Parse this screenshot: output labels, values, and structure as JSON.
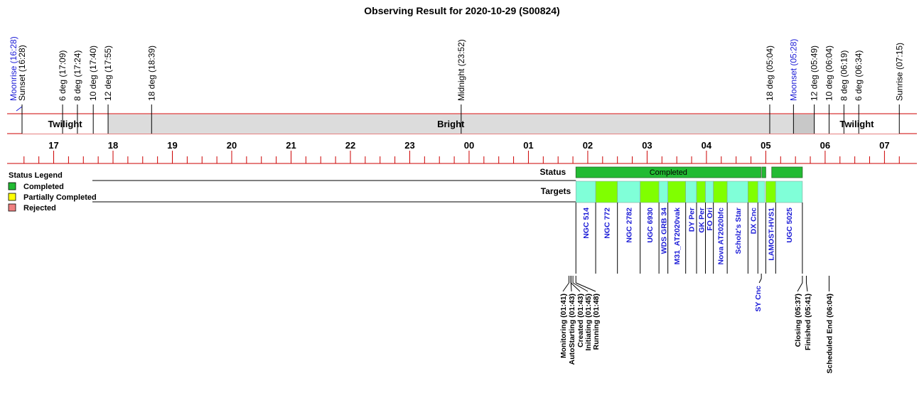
{
  "chart_data": {
    "type": "timeline",
    "title": "Observing Result for 2020-10-29 (S00824)",
    "time_axis": {
      "start": "16:28",
      "end": "07:15",
      "hour_ticks": [
        "17",
        "18",
        "19",
        "20",
        "21",
        "22",
        "23",
        "00",
        "01",
        "02",
        "03",
        "04",
        "05",
        "06",
        "07"
      ]
    },
    "events": [
      {
        "label": "Moonrise (16:28)",
        "time": "16:28",
        "kind": "moon"
      },
      {
        "label": "Sunset (16:28)",
        "time": "16:28",
        "kind": "sun"
      },
      {
        "label": "6 deg (17:09)",
        "time": "17:09",
        "kind": "sun"
      },
      {
        "label": "8 deg (17:24)",
        "time": "17:24",
        "kind": "sun"
      },
      {
        "label": "10 deg (17:40)",
        "time": "17:40",
        "kind": "sun"
      },
      {
        "label": "12 deg (17:55)",
        "time": "17:55",
        "kind": "sun"
      },
      {
        "label": "18 deg (18:39)",
        "time": "18:39",
        "kind": "sun"
      },
      {
        "label": "Midnight (23:52)",
        "time": "23:52",
        "kind": "sun"
      },
      {
        "label": "18 deg (05:04)",
        "time": "05:04",
        "kind": "sun"
      },
      {
        "label": "Moonset (05:28)",
        "time": "05:28",
        "kind": "moon"
      },
      {
        "label": "12 deg (05:49)",
        "time": "05:49",
        "kind": "sun"
      },
      {
        "label": "10 deg (06:04)",
        "time": "06:04",
        "kind": "sun"
      },
      {
        "label": "8 deg (06:19)",
        "time": "06:19",
        "kind": "sun"
      },
      {
        "label": "6 deg (06:34)",
        "time": "06:34",
        "kind": "sun"
      },
      {
        "label": "Sunrise (07:15)",
        "time": "07:15",
        "kind": "sun"
      }
    ],
    "bands": [
      {
        "label": "Twilight",
        "start": "16:28",
        "end": "17:55",
        "color": "#ffffff"
      },
      {
        "label": "Bright",
        "start": "17:55",
        "end": "05:28",
        "color": "#dcdcdc"
      },
      {
        "label": "",
        "start": "05:28",
        "end": "05:49",
        "color": "#c8c8c8"
      },
      {
        "label": "Twilight",
        "start": "05:49",
        "end": "07:15",
        "color": "#ffffff"
      }
    ],
    "rows": {
      "status": "Status",
      "targets": "Targets"
    },
    "status_segments": [
      {
        "label": "Completed",
        "start": "01:48",
        "end": "04:55",
        "status": "Completed"
      },
      {
        "label": "",
        "start": "04:56",
        "end": "05:00",
        "status": "Completed"
      },
      {
        "label": "",
        "start": "05:06",
        "end": "05:37",
        "status": "Completed"
      }
    ],
    "targets": [
      {
        "name": "NGC 514",
        "start": "01:48",
        "end": "02:08",
        "status": "Completed"
      },
      {
        "name": "NGC 772",
        "start": "02:08",
        "end": "02:30",
        "status": "Completed"
      },
      {
        "name": "NGC 2782",
        "start": "02:30",
        "end": "02:53",
        "status": "Completed"
      },
      {
        "name": "UGC 6930",
        "start": "02:53",
        "end": "03:12",
        "status": "Completed"
      },
      {
        "name": "WDS GRB 34",
        "start": "03:12",
        "end": "03:21",
        "status": "Completed"
      },
      {
        "name": "M31_AT2020vak",
        "start": "03:21",
        "end": "03:39",
        "status": "Completed"
      },
      {
        "name": "DY Per",
        "start": "03:39",
        "end": "03:50",
        "status": "Completed"
      },
      {
        "name": "GK Per",
        "start": "03:50",
        "end": "03:59",
        "status": "Completed"
      },
      {
        "name": "FO Ori",
        "start": "03:59",
        "end": "04:07",
        "status": "Completed"
      },
      {
        "name": "Nova AT2020bfc",
        "start": "04:07",
        "end": "04:21",
        "status": "Completed"
      },
      {
        "name": "Scholz's Star",
        "start": "04:21",
        "end": "04:42",
        "status": "Completed"
      },
      {
        "name": "DX Cnc",
        "start": "04:42",
        "end": "04:52",
        "status": "Completed"
      },
      {
        "name": "SY Cnc",
        "start": "04:52",
        "end": "04:59",
        "status": "Completed"
      },
      {
        "name": "LAMOST-HVS1",
        "start": "05:00",
        "end": "05:10",
        "status": "Completed"
      },
      {
        "name": "UGC 5025",
        "start": "05:10",
        "end": "05:37",
        "status": "Completed"
      }
    ],
    "milestones": [
      {
        "label": "Monitoring (01:41)",
        "time": "01:41"
      },
      {
        "label": "AutoStarting (01:43)",
        "time": "01:43"
      },
      {
        "label": "Created (01:43)",
        "time": "01:43"
      },
      {
        "label": "Initiating (01:45)",
        "time": "01:45"
      },
      {
        "label": "Running (01:48)",
        "time": "01:48"
      },
      {
        "label": "Closing (05:37)",
        "time": "05:37"
      },
      {
        "label": "Finished (05:41)",
        "time": "05:41"
      },
      {
        "label": "Scheduled End (06:04)",
        "time": "06:04"
      }
    ],
    "legend": {
      "title": "Status Legend",
      "placement": "left",
      "items": [
        {
          "label": "Completed",
          "color": "#22bb33"
        },
        {
          "label": "Partially Completed",
          "color": "#ffff00"
        },
        {
          "label": "Rejected",
          "color": "#f08080"
        }
      ]
    }
  },
  "colors": {
    "completed": "#22bb33",
    "target_a": "#80ffd8",
    "target_b": "#80ff00",
    "rule": "#cc0000",
    "moon_text": "#1a1ad6"
  }
}
